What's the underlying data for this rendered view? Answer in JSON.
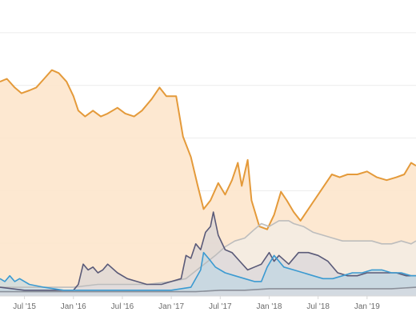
{
  "chart_data": {
    "type": "area",
    "x_ticks": [
      "Jul '15",
      "Jan '16",
      "Jul '16",
      "Jan '17",
      "Jul '17",
      "Jan '18",
      "Jul '18",
      "Jan '19"
    ],
    "x_range": [
      2015.25,
      2019.5
    ],
    "ylim": [
      0,
      100
    ],
    "grid": true,
    "legend": "none",
    "series": [
      {
        "color": "#e49a3a",
        "fill": "#fde6cc",
        "points": [
          [
            2015.25,
            74
          ],
          [
            2015.32,
            75
          ],
          [
            2015.4,
            72
          ],
          [
            2015.47,
            70
          ],
          [
            2015.55,
            71
          ],
          [
            2015.62,
            72
          ],
          [
            2015.7,
            75
          ],
          [
            2015.78,
            78
          ],
          [
            2015.85,
            77
          ],
          [
            2015.93,
            74
          ],
          [
            2016.0,
            69
          ],
          [
            2016.05,
            64
          ],
          [
            2016.12,
            62
          ],
          [
            2016.2,
            64
          ],
          [
            2016.28,
            62
          ],
          [
            2016.35,
            63
          ],
          [
            2016.45,
            65
          ],
          [
            2016.53,
            63
          ],
          [
            2016.62,
            62
          ],
          [
            2016.7,
            64
          ],
          [
            2016.8,
            68
          ],
          [
            2016.88,
            72
          ],
          [
            2016.95,
            69
          ],
          [
            2017.05,
            69
          ],
          [
            2017.08,
            63
          ],
          [
            2017.12,
            55
          ],
          [
            2017.2,
            48
          ],
          [
            2017.27,
            38
          ],
          [
            2017.33,
            30
          ],
          [
            2017.4,
            33
          ],
          [
            2017.48,
            39
          ],
          [
            2017.55,
            35
          ],
          [
            2017.62,
            40
          ],
          [
            2017.68,
            46
          ],
          [
            2017.72,
            38
          ],
          [
            2017.78,
            47
          ],
          [
            2017.82,
            33
          ],
          [
            2017.9,
            24
          ],
          [
            2017.98,
            23
          ],
          [
            2018.05,
            28
          ],
          [
            2018.12,
            36
          ],
          [
            2018.18,
            33
          ],
          [
            2018.25,
            29
          ],
          [
            2018.32,
            26
          ],
          [
            2018.4,
            30
          ],
          [
            2018.48,
            34
          ],
          [
            2018.56,
            38
          ],
          [
            2018.64,
            42
          ],
          [
            2018.72,
            41
          ],
          [
            2018.8,
            42
          ],
          [
            2018.9,
            42
          ],
          [
            2019.0,
            43
          ],
          [
            2019.1,
            41
          ],
          [
            2019.2,
            40
          ],
          [
            2019.3,
            41
          ],
          [
            2019.38,
            42
          ],
          [
            2019.45,
            46
          ],
          [
            2019.5,
            45
          ]
        ]
      },
      {
        "color": "#bdbdbd",
        "fill": "#eeeeee",
        "points": [
          [
            2015.25,
            3
          ],
          [
            2015.5,
            3
          ],
          [
            2015.75,
            3
          ],
          [
            2016.0,
            3
          ],
          [
            2016.25,
            4
          ],
          [
            2016.5,
            4
          ],
          [
            2016.75,
            4
          ],
          [
            2017.0,
            5
          ],
          [
            2017.15,
            6
          ],
          [
            2017.3,
            10
          ],
          [
            2017.45,
            14
          ],
          [
            2017.55,
            17
          ],
          [
            2017.65,
            19
          ],
          [
            2017.75,
            20
          ],
          [
            2017.85,
            23
          ],
          [
            2017.92,
            25
          ],
          [
            2018.0,
            24
          ],
          [
            2018.1,
            26
          ],
          [
            2018.2,
            26
          ],
          [
            2018.25,
            25
          ],
          [
            2018.35,
            24
          ],
          [
            2018.45,
            22
          ],
          [
            2018.55,
            21
          ],
          [
            2018.65,
            20
          ],
          [
            2018.75,
            19
          ],
          [
            2018.85,
            19
          ],
          [
            2018.95,
            19
          ],
          [
            2019.05,
            19
          ],
          [
            2019.15,
            18
          ],
          [
            2019.25,
            18
          ],
          [
            2019.35,
            19
          ],
          [
            2019.45,
            18
          ],
          [
            2019.5,
            19
          ]
        ]
      },
      {
        "color": "#5a5a78",
        "fill": "#cfd0d8",
        "points": [
          [
            2015.25,
            3
          ],
          [
            2015.5,
            2
          ],
          [
            2015.75,
            2
          ],
          [
            2016.0,
            2
          ],
          [
            2016.05,
            4
          ],
          [
            2016.1,
            11
          ],
          [
            2016.15,
            9
          ],
          [
            2016.2,
            10
          ],
          [
            2016.25,
            8
          ],
          [
            2016.3,
            9
          ],
          [
            2016.35,
            11
          ],
          [
            2016.45,
            8
          ],
          [
            2016.55,
            6
          ],
          [
            2016.65,
            5
          ],
          [
            2016.75,
            4
          ],
          [
            2016.9,
            4
          ],
          [
            2017.0,
            5
          ],
          [
            2017.1,
            6
          ],
          [
            2017.15,
            14
          ],
          [
            2017.2,
            13
          ],
          [
            2017.25,
            18
          ],
          [
            2017.3,
            16
          ],
          [
            2017.35,
            22
          ],
          [
            2017.4,
            24
          ],
          [
            2017.43,
            29
          ],
          [
            2017.48,
            21
          ],
          [
            2017.55,
            16
          ],
          [
            2017.62,
            15
          ],
          [
            2017.7,
            12
          ],
          [
            2017.78,
            9
          ],
          [
            2017.85,
            10
          ],
          [
            2017.92,
            11
          ],
          [
            2018.0,
            15
          ],
          [
            2018.05,
            12
          ],
          [
            2018.1,
            14
          ],
          [
            2018.2,
            11
          ],
          [
            2018.3,
            15
          ],
          [
            2018.4,
            15
          ],
          [
            2018.5,
            14
          ],
          [
            2018.6,
            12
          ],
          [
            2018.7,
            8
          ],
          [
            2018.8,
            7
          ],
          [
            2018.9,
            7
          ],
          [
            2019.0,
            8
          ],
          [
            2019.1,
            8
          ],
          [
            2019.2,
            8
          ],
          [
            2019.3,
            8
          ],
          [
            2019.4,
            7
          ],
          [
            2019.5,
            7
          ]
        ]
      },
      {
        "color": "#3b9ad1",
        "fill": "#b6d6e6",
        "points": [
          [
            2015.25,
            6
          ],
          [
            2015.3,
            5
          ],
          [
            2015.35,
            7
          ],
          [
            2015.4,
            5
          ],
          [
            2015.45,
            6
          ],
          [
            2015.55,
            4
          ],
          [
            2015.7,
            3
          ],
          [
            2015.9,
            2
          ],
          [
            2016.1,
            2
          ],
          [
            2016.4,
            2
          ],
          [
            2016.7,
            2
          ],
          [
            2017.0,
            2
          ],
          [
            2017.2,
            3
          ],
          [
            2017.3,
            9
          ],
          [
            2017.33,
            15
          ],
          [
            2017.38,
            13
          ],
          [
            2017.45,
            10
          ],
          [
            2017.55,
            8
          ],
          [
            2017.65,
            7
          ],
          [
            2017.75,
            6
          ],
          [
            2017.85,
            5
          ],
          [
            2017.92,
            5
          ],
          [
            2017.98,
            10
          ],
          [
            2018.05,
            14
          ],
          [
            2018.15,
            10
          ],
          [
            2018.25,
            9
          ],
          [
            2018.35,
            8
          ],
          [
            2018.45,
            7
          ],
          [
            2018.55,
            6
          ],
          [
            2018.65,
            6
          ],
          [
            2018.75,
            7
          ],
          [
            2018.85,
            8
          ],
          [
            2018.95,
            8
          ],
          [
            2019.05,
            9
          ],
          [
            2019.15,
            9
          ],
          [
            2019.25,
            8
          ],
          [
            2019.35,
            8
          ],
          [
            2019.45,
            7
          ],
          [
            2019.5,
            7
          ]
        ]
      },
      {
        "color": "#8a8f99",
        "fill": "#dadde2",
        "points": [
          [
            2015.25,
            1.5
          ],
          [
            2015.75,
            1.5
          ],
          [
            2016.25,
            1.5
          ],
          [
            2016.75,
            1.5
          ],
          [
            2017.25,
            1.5
          ],
          [
            2017.5,
            2
          ],
          [
            2017.75,
            2
          ],
          [
            2018.0,
            2.5
          ],
          [
            2018.25,
            2.5
          ],
          [
            2018.5,
            2.5
          ],
          [
            2018.75,
            2.5
          ],
          [
            2019.0,
            2.5
          ],
          [
            2019.25,
            2.5
          ],
          [
            2019.5,
            3
          ]
        ]
      }
    ]
  }
}
